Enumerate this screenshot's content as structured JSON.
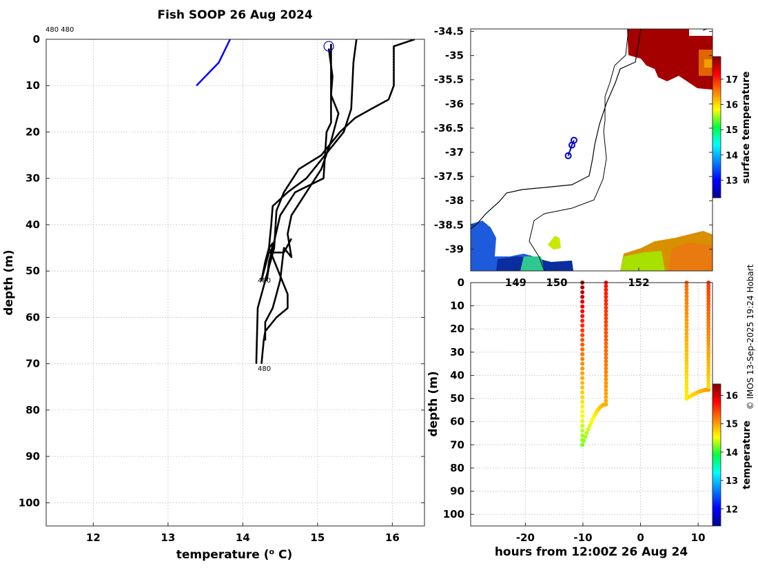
{
  "title": "Fish SOOP 26 Aug 2024",
  "credit": "© IMOS 13-Sep-2025 19:24 Hobart",
  "corner_label": "480 480",
  "colors": {
    "profile": "#000000",
    "climatology": "#0000ff",
    "marker": "#0000cc",
    "land_warm": "#a50000"
  },
  "chart_data": [
    {
      "type": "line",
      "name": "profile_plot",
      "title": "Fish SOOP 26 Aug 2024",
      "xlabel": "temperature (",
      "xlabel_sup": "o",
      "xlabel_end": " C)",
      "ylabel": "depth (m)",
      "xlim": [
        11.37,
        16.43
      ],
      "ylim": [
        105,
        0
      ],
      "xticks": [
        12,
        13,
        14,
        15,
        16
      ],
      "yticks": [
        0,
        10,
        20,
        30,
        40,
        50,
        60,
        70,
        80,
        90,
        100
      ],
      "annotations": [
        {
          "text": "480",
          "x": 14.2,
          "y": 52.5
        },
        {
          "text": "480",
          "x": 14.2,
          "y": 71.5
        }
      ],
      "series": [
        {
          "name": "climatology",
          "color": "#0000ff",
          "points": [
            [
              13.83,
              0
            ],
            [
              13.68,
              5
            ],
            [
              13.38,
              10
            ]
          ]
        },
        {
          "name": "profile-1",
          "color": "#000000",
          "points": [
            [
              15.18,
              1
            ],
            [
              15.18,
              18
            ],
            [
              15.12,
              20
            ],
            [
              15.08,
              30
            ],
            [
              14.7,
              33
            ],
            [
              14.5,
              38
            ],
            [
              14.4,
              45
            ],
            [
              14.35,
              48
            ],
            [
              14.32,
              52
            ],
            [
              14.4,
              44
            ],
            [
              14.35,
              45
            ],
            [
              14.6,
              55
            ],
            [
              14.6,
              58
            ],
            [
              14.45,
              60
            ],
            [
              14.3,
              63
            ],
            [
              14.28,
              65
            ],
            [
              14.25,
              70
            ]
          ]
        },
        {
          "name": "profile-2",
          "color": "#000000",
          "points": [
            [
              15.52,
              0
            ],
            [
              15.48,
              5
            ],
            [
              15.45,
              15
            ],
            [
              15.35,
              20
            ],
            [
              15.1,
              25
            ],
            [
              14.85,
              30
            ],
            [
              14.6,
              33
            ],
            [
              14.4,
              36
            ],
            [
              14.38,
              40
            ],
            [
              14.35,
              45
            ],
            [
              14.3,
              48
            ],
            [
              14.25,
              52
            ],
            [
              14.35,
              46
            ],
            [
              14.55,
              46
            ],
            [
              14.65,
              43
            ]
          ]
        },
        {
          "name": "profile-3",
          "color": "#000000",
          "points": [
            [
              16.3,
              0
            ],
            [
              16.02,
              1.5
            ],
            [
              16.02,
              10
            ],
            [
              15.95,
              13
            ],
            [
              15.72,
              15
            ],
            [
              15.5,
              17
            ],
            [
              15.3,
              20
            ],
            [
              15.05,
              25
            ],
            [
              14.75,
              28
            ],
            [
              14.55,
              33
            ],
            [
              14.45,
              37
            ],
            [
              14.42,
              45
            ],
            [
              14.2,
              58
            ],
            [
              14.18,
              70
            ]
          ]
        },
        {
          "name": "profile-4",
          "color": "#000000",
          "points": [
            [
              15.15,
              2
            ],
            [
              15.2,
              8
            ],
            [
              15.18,
              12
            ],
            [
              15.28,
              16
            ],
            [
              15.18,
              22
            ],
            [
              15.05,
              28
            ],
            [
              14.85,
              33
            ],
            [
              14.65,
              38
            ],
            [
              14.6,
              42
            ],
            [
              14.65,
              47
            ],
            [
              14.55,
              45
            ],
            [
              14.5,
              52
            ],
            [
              14.45,
              55
            ],
            [
              14.4,
              58
            ],
            [
              14.3,
              61
            ],
            [
              14.3,
              65
            ]
          ]
        }
      ],
      "markers": [
        {
          "shape": "circle",
          "x": 15.15,
          "y": 1.5
        }
      ]
    },
    {
      "type": "heatmap",
      "name": "map_plot",
      "xlim": [
        147.9,
        153.8
      ],
      "ylim": [
        -39.45,
        -34.45
      ],
      "xticks": [
        149,
        150,
        152
      ],
      "xtick_labels_shown": [
        "149",
        "150",
        "152"
      ],
      "yticks": [
        -34.5,
        -35,
        -35.5,
        -36,
        -36.5,
        -37,
        -37.5,
        -38,
        -38.5,
        -39
      ],
      "colorbar": {
        "label": "surface temperature",
        "min": 12.3,
        "max": 17.9,
        "ticks": [
          13,
          14,
          15,
          16,
          17
        ]
      },
      "tracks": [
        {
          "lon": 150.42,
          "lat": -36.75
        },
        {
          "lon": 150.37,
          "lat": -36.85
        },
        {
          "lon": 150.28,
          "lat": -37.07
        }
      ]
    },
    {
      "type": "scatter",
      "name": "time_depth_plot",
      "xlabel": "hours from 12:00Z 26 Aug 24",
      "ylabel": "depth (m)",
      "xlim": [
        -29.5,
        12.5
      ],
      "ylim": [
        105,
        0
      ],
      "xticks": [
        -20,
        -10,
        0,
        10
      ],
      "yticks": [
        0,
        10,
        20,
        30,
        40,
        50,
        60,
        70,
        80,
        90,
        100
      ],
      "colorbar": {
        "label": "temperature",
        "min": 11.4,
        "max": 16.4,
        "ticks": [
          12,
          13,
          14,
          15,
          16
        ]
      },
      "casts": [
        {
          "time_start": -10.1,
          "time_end": -10.1,
          "surface_temp": 16.3,
          "bottom_depth": 70,
          "bottom_temp": 14.2,
          "return_time": -6.0,
          "return_temp": 15.5
        },
        {
          "time_start": 8.0,
          "time_end": 8.0,
          "surface_temp": 15.3,
          "bottom_depth": 50,
          "bottom_temp": 14.6,
          "return_time": 11.8,
          "return_temp": 15.3
        }
      ]
    }
  ]
}
